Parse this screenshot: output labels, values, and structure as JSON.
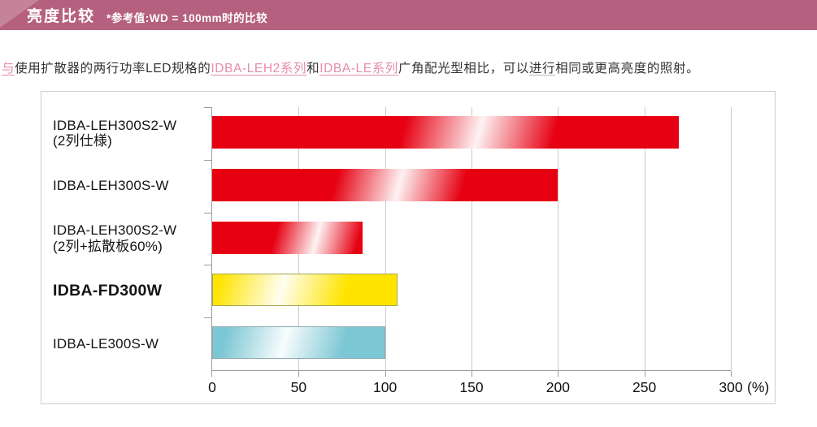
{
  "header": {
    "title": "亮度比较",
    "subtitle": "*参考值:WD = 100mm时的比较",
    "bg_color": "#b5607e"
  },
  "intro": {
    "text": "与使用扩散器的两行功率LED规格的IDBA-LEH2系列和IDBA-LE系列广角配光型相比，可以进行相同或更高亮度的照射。",
    "link_color": "#e78bae",
    "segments": [
      {
        "text": "与",
        "style": "link"
      },
      {
        "text": "使用扩散器的两行功率LED规格的",
        "style": "plain"
      },
      {
        "text": "IDBA-LEH2系列",
        "style": "link"
      },
      {
        "text": "和",
        "style": "plain"
      },
      {
        "text": "IDBA-LE系列",
        "style": "link"
      },
      {
        "text": "广角配光型相比，可以",
        "style": "plain"
      },
      {
        "text": "进行",
        "style": "underline"
      },
      {
        "text": "相同或更高亮度的照射。",
        "style": "plain"
      }
    ]
  },
  "chart_data": {
    "type": "bar",
    "orientation": "horizontal",
    "title": "亮度比较 (*参考值: WD = 100mm时的比较)",
    "categories": [
      "IDBA-LEH300S2-W (2列仕様)",
      "IDBA-LEH300S-W",
      "IDBA-LEH300S2-W (2列+拡散板60%)",
      "IDBA-FD300W",
      "IDBA-LE300S-W"
    ],
    "label_lines": [
      [
        "IDBA-LEH300S2-W",
        "(2列仕様)"
      ],
      [
        "IDBA-LEH300S-W"
      ],
      [
        "IDBA-LEH300S2-W",
        "(2列+拡散板60%)"
      ],
      [
        "IDBA-FD300W"
      ],
      [
        "IDBA-LE300S-W"
      ]
    ],
    "values": [
      270,
      200,
      87,
      107,
      100
    ],
    "bar_colors": [
      "#e60012",
      "#e60012",
      "#e60012",
      "#ffe400",
      "#7cc7d4"
    ],
    "bar_borders": [
      null,
      null,
      null,
      "#a8a452",
      "#8ba8ae"
    ],
    "bold_categories": [
      "IDBA-FD300W"
    ],
    "xlabel": "(%)",
    "xlim": [
      0,
      300
    ],
    "xticks": [
      0,
      50,
      100,
      150,
      200,
      250,
      300
    ],
    "grid": true,
    "legend": "none"
  }
}
